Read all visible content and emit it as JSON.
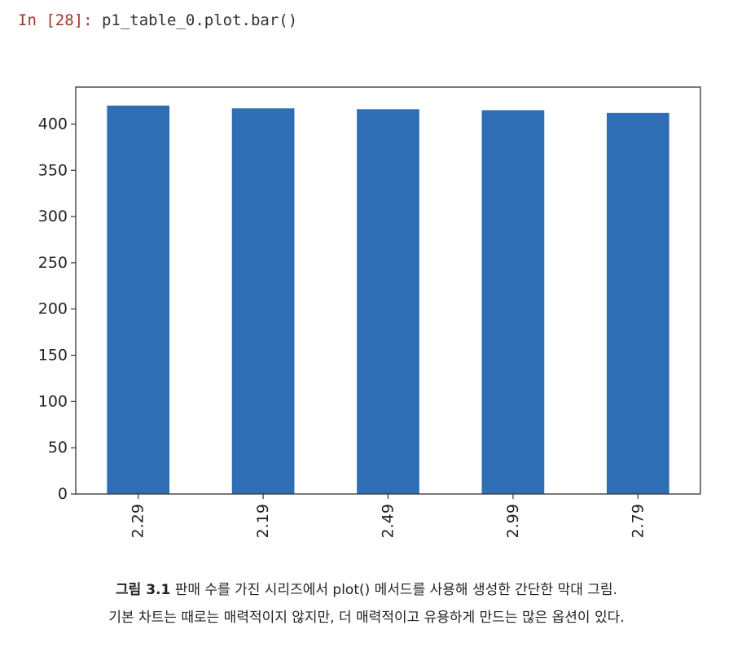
{
  "cell": {
    "prompt": "In [28]:",
    "code": "p1_table_0.plot.bar()"
  },
  "colors": {
    "bar": "#2f6eb5",
    "prompt": "#a0352a",
    "axes": "#333333"
  },
  "chart_data": {
    "type": "bar",
    "categories": [
      "2.29",
      "2.19",
      "2.49",
      "2.99",
      "2.79"
    ],
    "values": [
      420,
      417,
      416,
      415,
      412
    ],
    "title": "",
    "xlabel": "",
    "ylabel": "",
    "ylim": [
      0,
      440
    ],
    "yticks": [
      0,
      50,
      100,
      150,
      200,
      250,
      300,
      350,
      400
    ],
    "x_tick_rotation": "vertical",
    "grid": false,
    "legend": "none"
  },
  "caption": {
    "figure_number": "그림 3.1",
    "line1": "판매 수를 가진 시리즈에서 plot() 메서드를 사용해 생성한 간단한 막대 그림.",
    "line2": "기본 차트는 때로는 매력적이지 않지만, 더 매력적이고 유용하게 만드는 많은 옵션이 있다."
  }
}
